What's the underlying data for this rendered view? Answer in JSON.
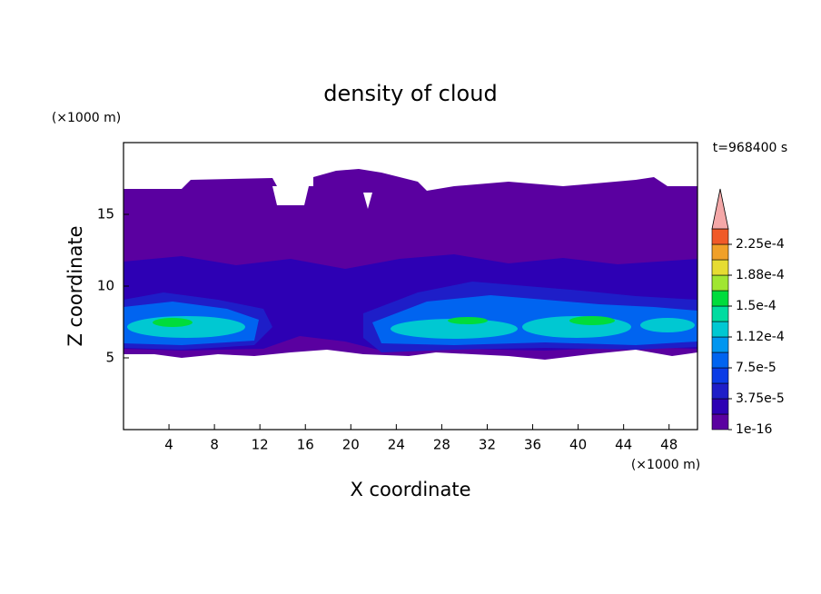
{
  "chart_data": {
    "type": "contour",
    "title": "density of cloud",
    "x_label": "X coordinate",
    "y_label": "Z coordinate",
    "x_unit": "(×1000 m)",
    "y_unit": "(×1000 m)",
    "time_label": "t=968400 s",
    "xlim": [
      0,
      50.5
    ],
    "ylim": [
      0,
      20
    ],
    "xticks": [
      4,
      8,
      12,
      16,
      20,
      24,
      28,
      32,
      36,
      40,
      44,
      48
    ],
    "yticks": [
      5,
      10,
      15
    ],
    "colors": [
      "#5a00a0",
      "#2d00b4",
      "#1e1ec8",
      "#0a3ce6",
      "#0064f0",
      "#0096f0",
      "#00c8d2",
      "#00dca0",
      "#00dc3c",
      "#a0e632",
      "#e6dc32",
      "#f0a028",
      "#f05a28"
    ],
    "over_color": "#f4a8a8",
    "clim": [
      0,
      0.00024375
    ],
    "colorbar_ticks": [
      {
        "value": 1e-16,
        "label": "1e-16"
      },
      {
        "value": 3.75e-05,
        "label": "3.75e-5"
      },
      {
        "value": 7.5e-05,
        "label": "7.5e-5"
      },
      {
        "value": 0.0001125,
        "label": "1.12e-4"
      },
      {
        "value": 0.00015,
        "label": "1.5e-4"
      },
      {
        "value": 0.0001875,
        "label": "1.88e-4"
      },
      {
        "value": 0.000225,
        "label": "2.25e-4"
      }
    ]
  }
}
